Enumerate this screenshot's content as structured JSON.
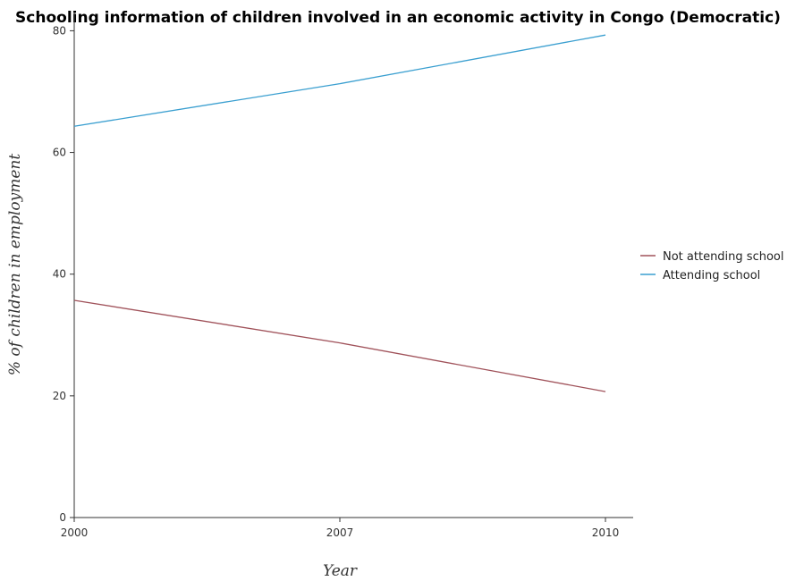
{
  "chart_data": {
    "type": "line",
    "title": "Schooling information of children involved in an economic activity in Congo (Democratic)",
    "xlabel": "Year",
    "ylabel": "% of children in employment",
    "categories": [
      "2000",
      "2007",
      "2010"
    ],
    "ylim": [
      0,
      83
    ],
    "yticks": [
      0,
      20,
      40,
      60,
      80
    ],
    "grid": false,
    "legend_position": "right",
    "series": [
      {
        "name": "Not attending school",
        "color": "#a0525a",
        "values": [
          35.7,
          28.7,
          20.7
        ]
      },
      {
        "name": "Attending school",
        "color": "#3a9fd0",
        "values": [
          64.3,
          71.3,
          79.3
        ]
      }
    ]
  }
}
